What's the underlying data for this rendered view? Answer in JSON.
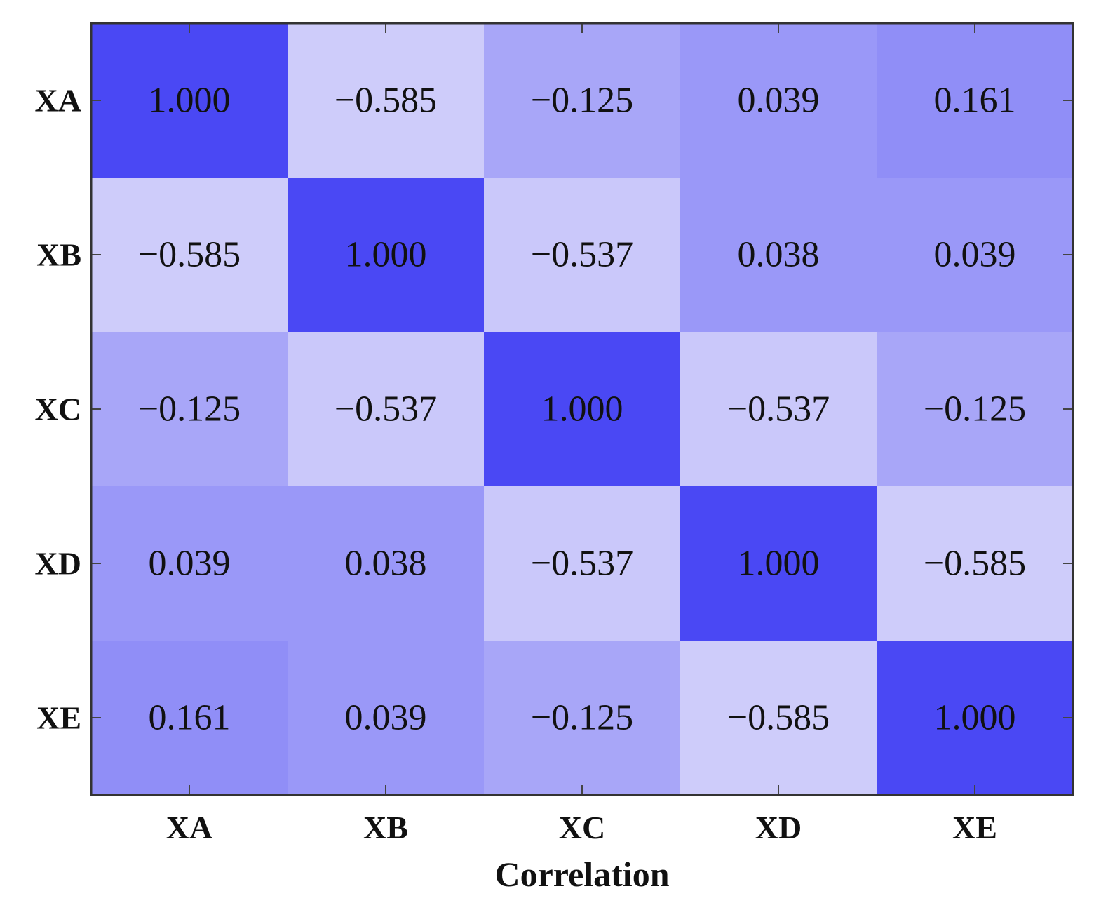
{
  "chart_data": {
    "type": "heatmap",
    "title": "",
    "xlabel": "Correlation",
    "ylabel": "",
    "x_categories": [
      "XA",
      "XB",
      "XC",
      "XD",
      "XE"
    ],
    "y_categories": [
      "XA",
      "XB",
      "XC",
      "XD",
      "XE"
    ],
    "values": [
      [
        1.0,
        -0.585,
        -0.125,
        0.039,
        0.161
      ],
      [
        -0.585,
        1.0,
        -0.537,
        0.038,
        0.039
      ],
      [
        -0.125,
        -0.537,
        1.0,
        -0.537,
        -0.125
      ],
      [
        0.039,
        0.038,
        -0.537,
        1.0,
        -0.585
      ],
      [
        0.161,
        0.039,
        -0.125,
        -0.585,
        1.0
      ]
    ],
    "value_labels": [
      [
        "1.000",
        "−0.585",
        "−0.125",
        "0.039",
        "0.161"
      ],
      [
        "−0.585",
        "1.000",
        "−0.537",
        "0.038",
        "0.039"
      ],
      [
        "−0.125",
        "−0.537",
        "1.000",
        "−0.537",
        "−0.125"
      ],
      [
        "0.039",
        "0.038",
        "−0.537",
        "1.000",
        "−0.585"
      ],
      [
        "0.161",
        "0.039",
        "−0.125",
        "−0.585",
        "1.000"
      ]
    ],
    "colormap": {
      "low_color": "#cfcdfa",
      "high_color": "#4a48f4",
      "vmin": -0.6,
      "vmax": 1.0
    }
  }
}
